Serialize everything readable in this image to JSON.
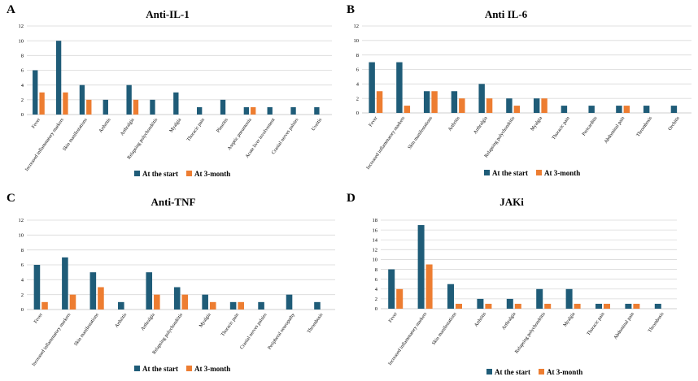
{
  "colors": {
    "start": "#1f5c78",
    "month3": "#ed7d31"
  },
  "chart_data": [
    {
      "letter": "A",
      "type": "bar",
      "title": "Anti-IL-1",
      "categories": [
        "Fever",
        "Increased inflammatory markers",
        "Skin manifestations",
        "Arthritis",
        "Arthralgia",
        "Relapsing polychondritis",
        "Myalgia",
        "Thoracic pain",
        "Pleuritis",
        "Aseptic pneumonia",
        "Acute liver involvement",
        "Cranial nerves palsies",
        "Uveitis"
      ],
      "series": [
        {
          "name": "At the start",
          "values": [
            6,
            10,
            4,
            2,
            4,
            2,
            3,
            1,
            2,
            1,
            1,
            1,
            1
          ]
        },
        {
          "name": "At 3-month",
          "values": [
            3,
            3,
            2,
            0,
            2,
            0,
            0,
            0,
            0,
            1,
            0,
            0,
            0
          ]
        }
      ],
      "ylim": [
        0,
        12
      ],
      "yticks": [
        0,
        2,
        4,
        6,
        8,
        10,
        12
      ],
      "legend": [
        "At the start",
        "At 3-month"
      ]
    },
    {
      "letter": "B",
      "type": "bar",
      "title": "Anti IL-6",
      "categories": [
        "Fever",
        "Increased inflammatory markers",
        "Skin manifestations",
        "Arthritis",
        "Arthralgia",
        "Relapsing polychondritis",
        "Myalgia",
        "Thoracic pain",
        "Pericarditis",
        "Abdominal pain",
        "Thrombosis",
        "Orchitis"
      ],
      "series": [
        {
          "name": "At the start",
          "values": [
            7,
            7,
            3,
            3,
            4,
            2,
            2,
            1,
            1,
            1,
            1,
            1
          ]
        },
        {
          "name": "At 3-month",
          "values": [
            3,
            1,
            3,
            2,
            2,
            1,
            2,
            0,
            0,
            1,
            0,
            0
          ]
        }
      ],
      "ylim": [
        0,
        12
      ],
      "yticks": [
        0,
        2,
        4,
        6,
        8,
        10,
        12
      ],
      "legend": [
        "At the start",
        "At 3-month"
      ]
    },
    {
      "letter": "C",
      "type": "bar",
      "title": "Anti-TNF",
      "categories": [
        "Fever",
        "Increased inflammatory markers",
        "Skin manifestations",
        "Arthritis",
        "Arthralgia",
        "Relapsing polychondritis",
        "Myalgia",
        "Thoracic pain",
        "Cranial nerves palsies",
        "Peripheral neuropathy",
        "Thrombosis"
      ],
      "series": [
        {
          "name": "At the start",
          "values": [
            6,
            7,
            5,
            1,
            5,
            3,
            2,
            1,
            1,
            2,
            1
          ]
        },
        {
          "name": "At 3-month",
          "values": [
            1,
            2,
            3,
            0,
            2,
            2,
            1,
            1,
            0,
            0,
            0
          ]
        }
      ],
      "ylim": [
        0,
        12
      ],
      "yticks": [
        0,
        2,
        4,
        6,
        8,
        10,
        12
      ],
      "legend": [
        "At the start",
        "At 3-month"
      ]
    },
    {
      "letter": "D",
      "type": "bar",
      "title": "JAKi",
      "categories": [
        "Fever",
        "Increased inflammatory markers",
        "Skin manifestations",
        "Arthritis",
        "Arthralgia",
        "Relapsing polychondritis",
        "Myalgia",
        "Thoracic pain",
        "Abdominal pain",
        "Thrombosis"
      ],
      "series": [
        {
          "name": "At the start",
          "values": [
            8,
            17,
            5,
            2,
            2,
            4,
            4,
            1,
            1,
            1
          ]
        },
        {
          "name": "At 3-month",
          "values": [
            4,
            9,
            1,
            1,
            1,
            1,
            1,
            1,
            1,
            0
          ]
        }
      ],
      "ylim": [
        0,
        18
      ],
      "yticks": [
        0,
        2,
        4,
        6,
        8,
        10,
        12,
        14,
        16,
        18
      ],
      "legend": [
        "At the start",
        "At 3-month"
      ]
    }
  ]
}
